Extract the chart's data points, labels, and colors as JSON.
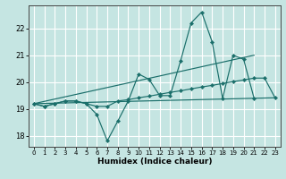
{
  "xlabel": "Humidex (Indice chaleur)",
  "bg_color": "#c5e5e2",
  "grid_color": "#ffffff",
  "line_color": "#1a6e6a",
  "x_ticks": [
    0,
    1,
    2,
    3,
    4,
    5,
    6,
    7,
    8,
    9,
    10,
    11,
    12,
    13,
    14,
    15,
    16,
    17,
    18,
    19,
    20,
    21,
    22,
    23
  ],
  "ylim": [
    17.6,
    22.85
  ],
  "xlim": [
    -0.5,
    23.5
  ],
  "yticks": [
    18,
    19,
    20,
    21,
    22
  ],
  "main_x": [
    0,
    1,
    2,
    3,
    4,
    5,
    6,
    7,
    8,
    9,
    10,
    11,
    12,
    13,
    14,
    15,
    16,
    17,
    18,
    19,
    20,
    21
  ],
  "main_y": [
    19.2,
    19.1,
    19.2,
    19.3,
    19.3,
    19.2,
    18.8,
    17.82,
    18.55,
    19.3,
    20.3,
    20.1,
    19.5,
    19.5,
    20.8,
    22.2,
    22.6,
    21.5,
    19.4,
    21.0,
    20.85,
    19.4
  ],
  "slow_x": [
    0,
    1,
    2,
    3,
    4,
    5,
    6,
    7,
    8,
    9,
    10,
    11,
    12,
    13,
    14,
    15,
    16,
    17,
    18,
    19,
    20,
    21,
    22,
    23
  ],
  "slow_y": [
    19.2,
    19.1,
    19.2,
    19.3,
    19.3,
    19.2,
    19.1,
    19.1,
    19.3,
    19.35,
    19.42,
    19.48,
    19.55,
    19.62,
    19.68,
    19.75,
    19.82,
    19.88,
    19.95,
    20.02,
    20.08,
    20.15,
    20.15,
    19.42
  ],
  "line1_x": [
    0,
    21
  ],
  "line1_y": [
    19.2,
    21.0
  ],
  "line2_x": [
    0,
    23
  ],
  "line2_y": [
    19.2,
    19.42
  ]
}
